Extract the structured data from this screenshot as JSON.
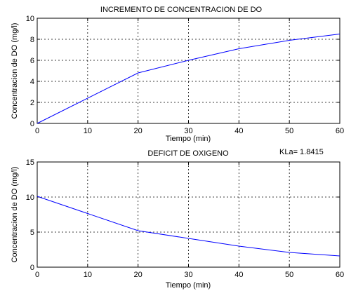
{
  "chart_data": [
    {
      "type": "line",
      "title": "INCREMENTO DE CONCENTRACION DE DO",
      "xlabel": "Tiempo (min)",
      "ylabel": "Concentracion de DO (mg/l)",
      "xlim": [
        0,
        60
      ],
      "ylim": [
        0,
        10
      ],
      "xticks": [
        0,
        10,
        20,
        30,
        40,
        50,
        60
      ],
      "yticks": [
        0,
        2,
        4,
        6,
        8,
        10
      ],
      "grid": true,
      "x": [
        0,
        20,
        30,
        40,
        50,
        60
      ],
      "series": [
        {
          "values": [
            0.0,
            4.8,
            6.0,
            7.1,
            7.9,
            8.5
          ],
          "color": "#0000ff"
        }
      ]
    },
    {
      "type": "line",
      "title": "DEFICIT DE OXIGENO",
      "annotation": "KLa= 1.8415",
      "xlabel": "Tiempo (min)",
      "ylabel": "Concentracion de DO (mg/l)",
      "xlim": [
        0,
        60
      ],
      "ylim": [
        0,
        15
      ],
      "xticks": [
        0,
        10,
        20,
        30,
        40,
        50,
        60
      ],
      "yticks": [
        0,
        5,
        10,
        15
      ],
      "grid": true,
      "x": [
        0,
        20,
        30,
        40,
        50,
        60
      ],
      "series": [
        {
          "values": [
            10.1,
            5.2,
            4.1,
            3.0,
            2.1,
            1.6
          ],
          "color": "#0000ff"
        }
      ]
    }
  ]
}
